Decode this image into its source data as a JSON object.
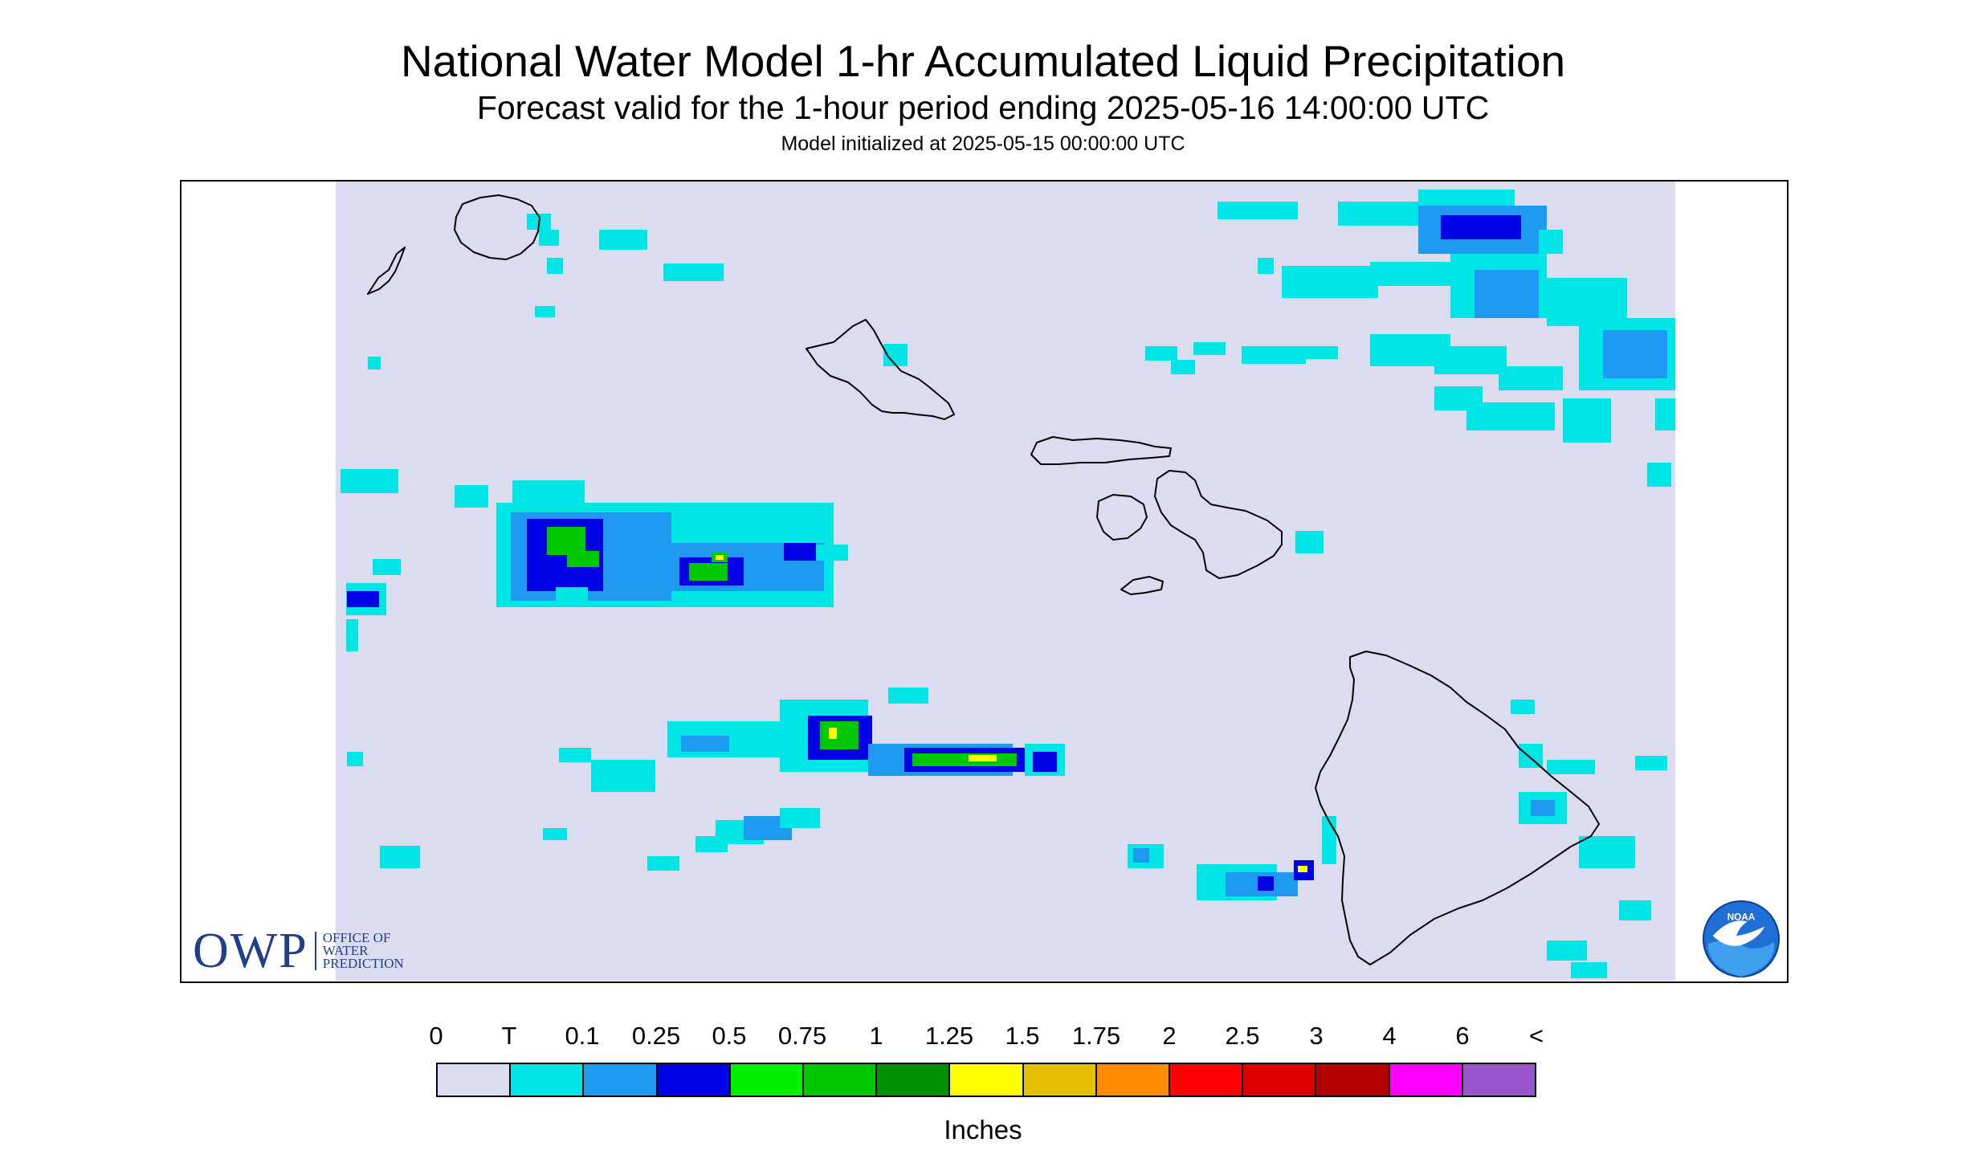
{
  "header": {
    "title": "National Water Model 1-hr Accumulated Liquid Precipitation",
    "subtitle": "Forecast valid for the 1-hour period ending 2025-05-16 14:00:00 UTC",
    "init_line": "Model initialized at 2025-05-15 00:00:00 UTC"
  },
  "logos": {
    "owp_abbrev": "OWP",
    "owp_line1": "OFFICE OF",
    "owp_line2": "WATER",
    "owp_line3": "PREDICTION",
    "noaa": "NOAA"
  },
  "legend": {
    "units": "Inches",
    "labels": [
      "0",
      "T",
      "0.1",
      "0.25",
      "0.5",
      "0.75",
      "1",
      "1.25",
      "1.5",
      "1.75",
      "2",
      "2.5",
      "3",
      "4",
      "6",
      "<"
    ],
    "colors": [
      "#dcdcf0",
      "#00e5e5",
      "#1e9bf0",
      "#0000e6",
      "#00f000",
      "#00c800",
      "#009000",
      "#ffff00",
      "#e6c000",
      "#ff8c00",
      "#ff0000",
      "#dc0000",
      "#b40000",
      "#ff00ff",
      "#9955cc"
    ]
  },
  "map": {
    "background": "#dcdcf0",
    "coast_color": "#000000"
  }
}
